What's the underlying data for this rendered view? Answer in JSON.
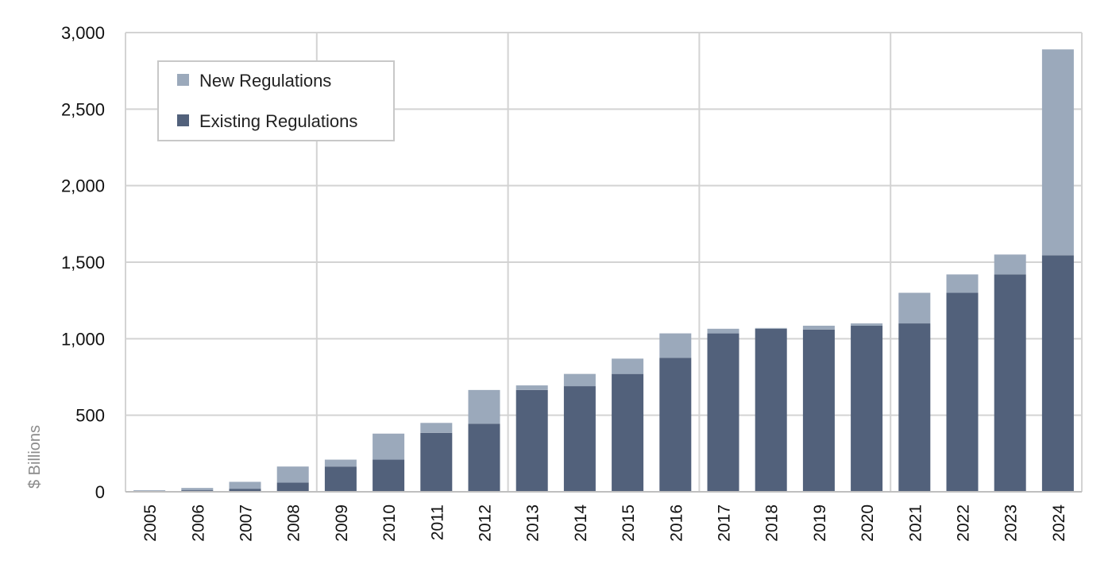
{
  "chart_data": {
    "type": "bar",
    "stacked": true,
    "ylabel": "$ Billions",
    "xlabel": "",
    "ylim": [
      0,
      3000
    ],
    "yticks": [
      0,
      500,
      1000,
      1500,
      2000,
      2500,
      3000
    ],
    "ytick_labels": [
      "0",
      "500",
      "1,000",
      "1,500",
      "2,000",
      "2,500",
      "3,000"
    ],
    "grid": true,
    "legend_position": "top-left",
    "categories": [
      "2005",
      "2006",
      "2007",
      "2008",
      "2009",
      "2010",
      "2011",
      "2012",
      "2013",
      "2014",
      "2015",
      "2016",
      "2017",
      "2018",
      "2019",
      "2020",
      "2021",
      "2022",
      "2023",
      "2024"
    ],
    "series": [
      {
        "name": "Existing Regulations",
        "color": "#52617b",
        "values": [
          3,
          10,
          20,
          60,
          165,
          210,
          385,
          445,
          665,
          690,
          770,
          875,
          1035,
          1065,
          1060,
          1085,
          1100,
          1300,
          1420,
          1545
        ]
      },
      {
        "name": "New Regulations",
        "color": "#9ba9bb",
        "values": [
          7,
          15,
          45,
          105,
          45,
          170,
          65,
          220,
          30,
          80,
          100,
          160,
          30,
          5,
          25,
          15,
          200,
          120,
          130,
          1345
        ]
      }
    ],
    "legend": [
      {
        "label": "New Regulations",
        "color": "#9ba9bb"
      },
      {
        "label": "Existing Regulations",
        "color": "#52617b"
      }
    ]
  }
}
